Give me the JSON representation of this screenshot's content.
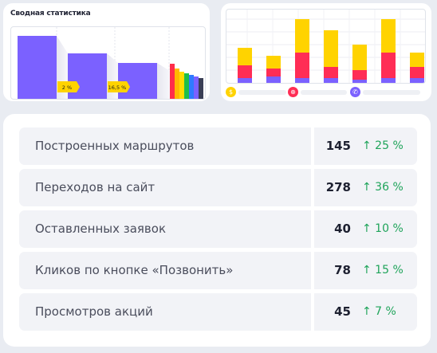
{
  "summary": {
    "title": "Сводная статистика",
    "funnel": {
      "bar_color": "#7b61ff",
      "badges": [
        "2 %",
        "16,5 %"
      ],
      "stripe_colors": [
        "#ff2d4a",
        "#ffb800",
        "#ffdd00",
        "#1fbf4a",
        "#2f7bff",
        "#7b61ff",
        "#3a3f55"
      ]
    }
  },
  "breakdown_chart": {
    "colors": {
      "top": "#ffd300",
      "middle": "#ff2d55",
      "bottom": "#7b61ff"
    },
    "legend": [
      {
        "icon": "dollar-icon",
        "glyph": "$",
        "color": "#ffd300"
      },
      {
        "icon": "globe-icon",
        "glyph": "⊕",
        "color": "#ff2d55"
      },
      {
        "icon": "phone-icon",
        "glyph": "✆",
        "color": "#7b61ff"
      }
    ]
  },
  "stats": {
    "trend_color": "#1fa45a",
    "rows": [
      {
        "label": "Построенных маршрутов",
        "value": "145",
        "trend": "↑ 25 %"
      },
      {
        "label": "Переходов на сайт",
        "value": "278",
        "trend": "↑ 36 %"
      },
      {
        "label": "Оставленных заявок",
        "value": "40",
        "trend": "↑ 10 %"
      },
      {
        "label": "Кликов по кнопке «Позвонить»",
        "value": "78",
        "trend": "↑ 15 %"
      },
      {
        "label": "Просмотров акций",
        "value": "45",
        "trend": "↑ 7 %"
      }
    ]
  }
}
